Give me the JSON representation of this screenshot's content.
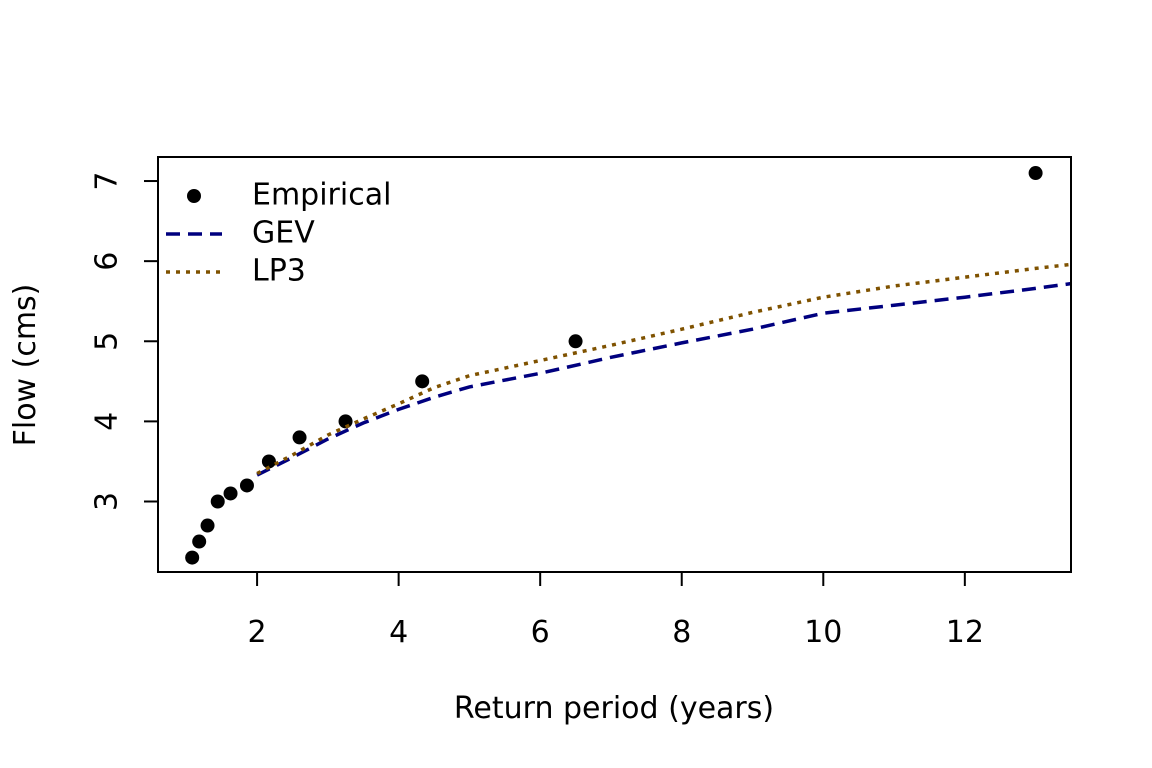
{
  "chart_data": {
    "type": "line",
    "title": "",
    "xlabel": "Return period (years)",
    "ylabel": "Flow (cms)",
    "xlim": [
      0.6,
      13.5
    ],
    "ylim": [
      2.12,
      7.3
    ],
    "x_ticks": [
      2,
      4,
      6,
      8,
      10,
      12
    ],
    "y_ticks": [
      3,
      4,
      5,
      6,
      7
    ],
    "grid": false,
    "legend_position": "top-left",
    "series": [
      {
        "name": "Empirical",
        "kind": "points",
        "color": "#000000",
        "x": [
          1.083,
          1.182,
          1.3,
          1.444,
          1.625,
          1.857,
          2.167,
          2.6,
          3.25,
          4.333,
          6.5,
          13.0
        ],
        "y": [
          2.3,
          2.5,
          2.7,
          3.0,
          3.1,
          3.2,
          3.5,
          3.8,
          4.0,
          4.5,
          5.0,
          7.1
        ]
      },
      {
        "name": "GEV",
        "kind": "line",
        "dash": "dashed",
        "color": "#00007f",
        "x": [
          2,
          2.5,
          3,
          3.5,
          4,
          4.5,
          5,
          6,
          7,
          8,
          9,
          10,
          11,
          12,
          13,
          13.5
        ],
        "y": [
          3.33,
          3.55,
          3.78,
          3.98,
          4.15,
          4.3,
          4.43,
          4.6,
          4.8,
          4.98,
          5.15,
          5.35,
          5.45,
          5.55,
          5.66,
          5.72
        ]
      },
      {
        "name": "LP3",
        "kind": "line",
        "dash": "dotted",
        "color": "#7f5200",
        "x": [
          2,
          2.5,
          3,
          3.5,
          4,
          4.5,
          5,
          6,
          7,
          8,
          9,
          10,
          11,
          12,
          13,
          13.5
        ],
        "y": [
          3.35,
          3.58,
          3.83,
          4.03,
          4.22,
          4.42,
          4.57,
          4.76,
          4.95,
          5.15,
          5.36,
          5.55,
          5.69,
          5.8,
          5.91,
          5.96
        ]
      }
    ]
  }
}
